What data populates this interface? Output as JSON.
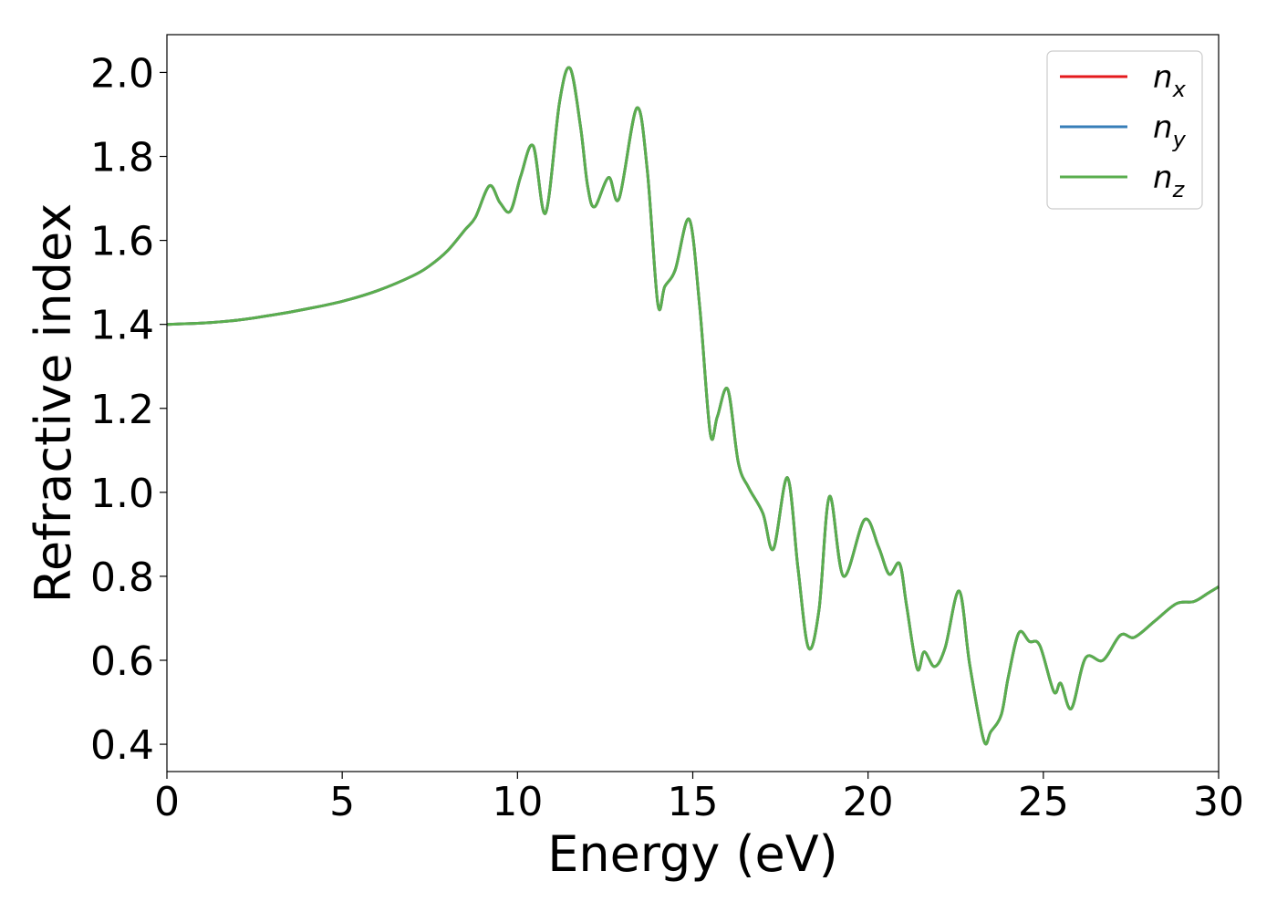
{
  "chart_data": {
    "type": "line",
    "xlabel": "Energy (eV)",
    "ylabel": "Refractive index",
    "xlim": [
      0,
      30
    ],
    "ylim": [
      0.335,
      2.09
    ],
    "grid": false,
    "legend_position": "top-right",
    "x_ticks": [
      "0",
      "5",
      "10",
      "15",
      "20",
      "25",
      "30"
    ],
    "y_ticks": [
      "0.4",
      "0.6",
      "0.8",
      "1.0",
      "1.2",
      "1.4",
      "1.6",
      "1.8",
      "2.0"
    ],
    "x": [
      0,
      1,
      2,
      3,
      4,
      5,
      6,
      7,
      7.5,
      8,
      8.5,
      8.8,
      9.2,
      9.5,
      9.8,
      10.1,
      10.45,
      10.8,
      11.2,
      11.5,
      11.8,
      12.0,
      12.2,
      12.6,
      12.9,
      13.4,
      13.7,
      14.0,
      14.2,
      14.5,
      14.9,
      15.2,
      15.5,
      15.7,
      16.0,
      16.3,
      16.6,
      17.0,
      17.3,
      17.7,
      18.0,
      18.3,
      18.6,
      18.9,
      19.3,
      19.9,
      20.3,
      20.6,
      20.9,
      21.1,
      21.4,
      21.6,
      21.9,
      22.2,
      22.6,
      22.9,
      23.3,
      23.5,
      23.8,
      24.0,
      24.3,
      24.6,
      24.9,
      25.3,
      25.5,
      25.8,
      26.2,
      26.7,
      27.2,
      27.6,
      28.2,
      28.8,
      29.3,
      29.7,
      30
    ],
    "series": [
      {
        "name": "n_x",
        "label_base": "n",
        "label_sub": "x",
        "color": "#e41a1c",
        "values": [
          1.4,
          1.403,
          1.41,
          1.422,
          1.437,
          1.455,
          1.48,
          1.515,
          1.54,
          1.575,
          1.625,
          1.655,
          1.73,
          1.69,
          1.67,
          1.755,
          1.825,
          1.665,
          1.93,
          2.01,
          1.87,
          1.73,
          1.68,
          1.75,
          1.7,
          1.915,
          1.77,
          1.45,
          1.49,
          1.53,
          1.65,
          1.44,
          1.14,
          1.18,
          1.245,
          1.07,
          1.01,
          0.95,
          0.865,
          1.035,
          0.82,
          0.63,
          0.72,
          0.99,
          0.8,
          0.935,
          0.87,
          0.805,
          0.83,
          0.73,
          0.58,
          0.62,
          0.585,
          0.63,
          0.765,
          0.59,
          0.41,
          0.43,
          0.47,
          0.56,
          0.665,
          0.645,
          0.635,
          0.525,
          0.545,
          0.485,
          0.605,
          0.6,
          0.66,
          0.655,
          0.695,
          0.735,
          0.74,
          0.76,
          0.775
        ]
      },
      {
        "name": "n_y",
        "label_base": "n",
        "label_sub": "y",
        "color": "#377eb8",
        "values": [
          1.4,
          1.403,
          1.41,
          1.422,
          1.437,
          1.455,
          1.48,
          1.515,
          1.54,
          1.575,
          1.625,
          1.655,
          1.73,
          1.69,
          1.67,
          1.755,
          1.825,
          1.665,
          1.93,
          2.01,
          1.87,
          1.73,
          1.68,
          1.75,
          1.7,
          1.915,
          1.77,
          1.45,
          1.49,
          1.53,
          1.65,
          1.44,
          1.14,
          1.18,
          1.245,
          1.07,
          1.01,
          0.95,
          0.865,
          1.035,
          0.82,
          0.63,
          0.72,
          0.99,
          0.8,
          0.935,
          0.87,
          0.805,
          0.83,
          0.73,
          0.58,
          0.62,
          0.585,
          0.63,
          0.765,
          0.59,
          0.41,
          0.43,
          0.47,
          0.56,
          0.665,
          0.645,
          0.635,
          0.525,
          0.545,
          0.485,
          0.605,
          0.6,
          0.66,
          0.655,
          0.695,
          0.735,
          0.74,
          0.76,
          0.775
        ]
      },
      {
        "name": "n_z",
        "label_base": "n",
        "label_sub": "z",
        "color": "#5aae4e",
        "values": [
          1.4,
          1.403,
          1.41,
          1.422,
          1.437,
          1.455,
          1.48,
          1.515,
          1.54,
          1.575,
          1.625,
          1.655,
          1.73,
          1.69,
          1.67,
          1.755,
          1.825,
          1.665,
          1.93,
          2.01,
          1.87,
          1.73,
          1.68,
          1.75,
          1.7,
          1.915,
          1.77,
          1.45,
          1.49,
          1.53,
          1.65,
          1.44,
          1.14,
          1.18,
          1.245,
          1.07,
          1.01,
          0.95,
          0.865,
          1.035,
          0.82,
          0.63,
          0.72,
          0.99,
          0.8,
          0.935,
          0.87,
          0.805,
          0.83,
          0.73,
          0.58,
          0.62,
          0.585,
          0.63,
          0.765,
          0.59,
          0.41,
          0.43,
          0.47,
          0.56,
          0.665,
          0.645,
          0.635,
          0.525,
          0.545,
          0.485,
          0.605,
          0.6,
          0.66,
          0.655,
          0.695,
          0.735,
          0.74,
          0.76,
          0.775
        ]
      }
    ]
  }
}
